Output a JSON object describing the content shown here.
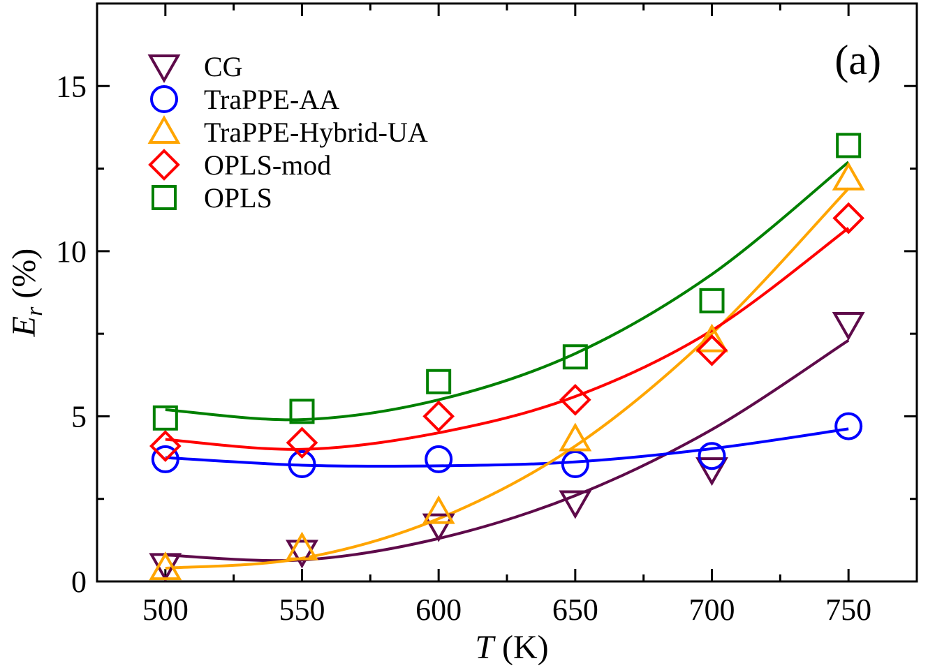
{
  "chart_data": {
    "type": "scatter",
    "panel_label": "(a)",
    "xlabel": {
      "symbol": "T",
      "unit": " (K)"
    },
    "ylabel": {
      "symbol": "E",
      "subscript": "r",
      "unit": " (%)"
    },
    "xlim": [
      475,
      775
    ],
    "ylim": [
      0,
      17.5
    ],
    "xticks": [
      500,
      550,
      600,
      650,
      700,
      750
    ],
    "xtick_labels": [
      "500",
      "550",
      "600",
      "650",
      "700",
      "750"
    ],
    "yticks": [
      0,
      5,
      10,
      15
    ],
    "ytick_labels": [
      "0",
      "5",
      "10",
      "15"
    ],
    "x_minor_ticks": [
      525,
      575,
      625,
      675,
      725
    ],
    "y_minor_ticks": [
      2.5,
      7.5,
      12.5
    ],
    "grid": false,
    "legend_position": "top-left",
    "series": [
      {
        "name": "CG",
        "marker": "triangle-down",
        "color": "#5e0a4a",
        "x": [
          500,
          550,
          600,
          650,
          700,
          750
        ],
        "y": [
          0.5,
          0.9,
          1.7,
          2.4,
          3.4,
          7.8
        ],
        "fit": [
          [
            500,
            0.8
          ],
          [
            550,
            0.65
          ],
          [
            600,
            1.3
          ],
          [
            650,
            2.6
          ],
          [
            700,
            4.6
          ],
          [
            750,
            7.3
          ]
        ]
      },
      {
        "name": "TraPPE-AA",
        "marker": "circle",
        "color": "#0000ff",
        "x": [
          500,
          550,
          600,
          650,
          700,
          750
        ],
        "y": [
          3.7,
          3.55,
          3.7,
          3.55,
          3.8,
          4.7
        ],
        "fit": [
          [
            500,
            3.75
          ],
          [
            550,
            3.52
          ],
          [
            600,
            3.5
          ],
          [
            650,
            3.62
          ],
          [
            700,
            4.02
          ],
          [
            750,
            4.62
          ]
        ]
      },
      {
        "name": "TraPPE-Hybrid-UA",
        "marker": "triangle-up",
        "color": "#ffa500",
        "x": [
          500,
          550,
          600,
          650,
          700,
          750
        ],
        "y": [
          0.4,
          1.0,
          2.1,
          4.3,
          7.3,
          12.2
        ],
        "fit": [
          [
            500,
            0.4
          ],
          [
            550,
            0.7
          ],
          [
            600,
            1.9
          ],
          [
            650,
            4.1
          ],
          [
            700,
            7.5
          ],
          [
            750,
            11.9
          ]
        ]
      },
      {
        "name": "OPLS-mod",
        "marker": "diamond",
        "color": "#ff0000",
        "x": [
          500,
          550,
          600,
          650,
          700,
          750
        ],
        "y": [
          4.1,
          4.2,
          5.0,
          5.5,
          7.0,
          11.0
        ],
        "fit": [
          [
            500,
            4.3
          ],
          [
            550,
            4.0
          ],
          [
            600,
            4.5
          ],
          [
            650,
            5.6
          ],
          [
            700,
            7.6
          ],
          [
            750,
            10.7
          ]
        ]
      },
      {
        "name": "OPLS",
        "marker": "square",
        "color": "#008000",
        "x": [
          500,
          550,
          600,
          650,
          700,
          750
        ],
        "y": [
          4.95,
          5.15,
          6.05,
          6.8,
          8.5,
          13.2
        ],
        "fit": [
          [
            500,
            5.2
          ],
          [
            550,
            4.9
          ],
          [
            600,
            5.5
          ],
          [
            650,
            6.9
          ],
          [
            700,
            9.3
          ],
          [
            750,
            12.7
          ]
        ]
      }
    ]
  }
}
